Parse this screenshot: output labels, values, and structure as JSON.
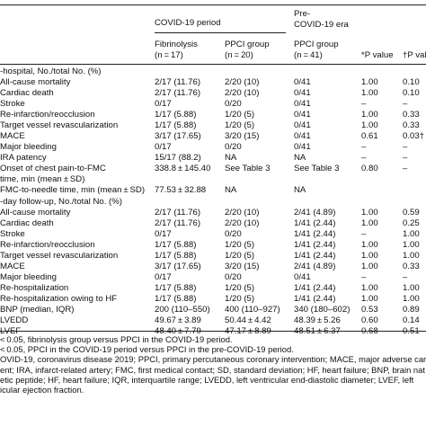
{
  "header": {
    "covid_period": "COVID-19 period",
    "pre_covid_line1": "Pre-",
    "pre_covid_line2": "COVID-19 era",
    "fibrinolysis_line1": "Fibrinolysis",
    "fibrinolysis_line2": "(n = 17)",
    "ppci_covid_line1": "PPCI group",
    "ppci_covid_line2": "(n = 20)",
    "ppci_pre_line1": "PPCI group",
    "ppci_pre_line2": "(n = 41)",
    "p_value_star": "*P value",
    "p_value_dagger": "†P value"
  },
  "rows": [
    {
      "label": "-hospital, No./total No. (%)",
      "fib": "",
      "ppci": "",
      "pre": "",
      "p1": "",
      "p2": ""
    },
    {
      "label": "All-cause mortality",
      "fib": "2/17 (11.76)",
      "ppci": "2/20 (10)",
      "pre": "0/41",
      "p1": "1.00",
      "p2": "0.10"
    },
    {
      "label": "Cardiac death",
      "fib": "2/17 (11.76)",
      "ppci": "2/20 (10)",
      "pre": "0/41",
      "p1": "1.00",
      "p2": "0.10"
    },
    {
      "label": "Stroke",
      "fib": "0/17",
      "ppci": "0/20",
      "pre": "0/41",
      "p1": "–",
      "p2": "–"
    },
    {
      "label": "Re-infarction/reocclusion",
      "fib": "1/17 (5.88)",
      "ppci": "1/20 (5)",
      "pre": "0/41",
      "p1": "1.00",
      "p2": "0.33"
    },
    {
      "label": "Target vessel revascularization",
      "fib": "1/17 (5.88)",
      "ppci": "1/20 (5)",
      "pre": "0/41",
      "p1": "1.00",
      "p2": "0.33"
    },
    {
      "label": "MACE",
      "fib": "3/17 (17.65)",
      "ppci": "3/20 (15)",
      "pre": "0/41",
      "p1": "0.61",
      "p2": "0.03†"
    },
    {
      "label": "Major bleeding",
      "fib": "0/17",
      "ppci": "0/20",
      "pre": "0/41",
      "p1": "–",
      "p2": "–"
    },
    {
      "label": "IRA patency",
      "fib": "15/17 (88.2)",
      "ppci": "NA",
      "pre": "NA",
      "p1": "–",
      "p2": "–"
    },
    {
      "label": "Onset of chest pain-to-FMC",
      "fib": "338.8 ± 145.40",
      "ppci": "See Table 3",
      "pre": "See Table 3",
      "p1": "0.80",
      "p2": "–"
    },
    {
      "label": "time, min (mean ± SD)",
      "fib": "",
      "ppci": "",
      "pre": "",
      "p1": "",
      "p2": ""
    },
    {
      "label": "FMC-to-needle time, min (mean ± SD)",
      "fib": "77.53 ± 32.88",
      "ppci": "NA",
      "pre": "NA",
      "p1": "",
      "p2": ""
    },
    {
      "label": "-day follow-up, No./total No. (%)",
      "fib": "",
      "ppci": "",
      "pre": "",
      "p1": "",
      "p2": ""
    },
    {
      "label": "All-cause mortality",
      "fib": "2/17 (11.76)",
      "ppci": "2/20 (10)",
      "pre": "2/41 (4.89)",
      "p1": "1.00",
      "p2": "0.59"
    },
    {
      "label": "Cardiac death",
      "fib": "2/17 (11.76)",
      "ppci": "2/20 (10)",
      "pre": "1/41 (2.44)",
      "p1": "1.00",
      "p2": "0.25"
    },
    {
      "label": "Stroke",
      "fib": "0/17",
      "ppci": "0/20",
      "pre": "1/41 (2.44)",
      "p1": "–",
      "p2": "1.00"
    },
    {
      "label": "Re-infarction/reocclusion",
      "fib": "1/17 (5.88)",
      "ppci": "1/20 (5)",
      "pre": "1/41 (2.44)",
      "p1": "1.00",
      "p2": "1.00"
    },
    {
      "label": "Target vessel revascularization",
      "fib": "1/17 (5.88)",
      "ppci": "1/20 (5)",
      "pre": "1/41 (2.44)",
      "p1": "1.00",
      "p2": "1.00"
    },
    {
      "label": "MACE",
      "fib": "3/17 (17.65)",
      "ppci": "3/20 (15)",
      "pre": "2/41 (4.89)",
      "p1": "1.00",
      "p2": "0.33"
    },
    {
      "label": "Major bleeding",
      "fib": "0/17",
      "ppci": "0/20",
      "pre": "0/41",
      "p1": "–",
      "p2": "–"
    },
    {
      "label": "Re-hospitalization",
      "fib": "1/17 (5.88)",
      "ppci": "1/20 (5)",
      "pre": "1/41 (2.44)",
      "p1": "1.00",
      "p2": "1.00"
    },
    {
      "label": "Re-hospitalization owing to HF",
      "fib": "1/17 (5.88)",
      "ppci": "1/20 (5)",
      "pre": "1/41 (2.44)",
      "p1": "1.00",
      "p2": "1.00"
    },
    {
      "label": "BNP (median, IQR)",
      "fib": "200 (110–550)",
      "ppci": "400 (110–927)",
      "pre": "340 (180–602)",
      "p1": "0.53",
      "p2": "0.89"
    },
    {
      "label": "LVEDD",
      "fib": "49.67 ± 3.89",
      "ppci": "50.44 ± 4.42",
      "pre": "48.39 ± 5.26",
      "p1": "0.60",
      "p2": "0.14"
    },
    {
      "label": "LVEF",
      "fib": "48.40 ± 7.79",
      "ppci": "47.17 ± 8.89",
      "pre": "48.51 ± 6.37",
      "p1": "0.68",
      "p2": "0.51"
    }
  ],
  "footnotes": [
    "< 0.05, fibrinolysis group versus PPCI in the COVID-19 period.",
    "< 0.05, PPCI in the COVID-19 period versus PPCI in the pre-COVID-19 period.",
    "OVID-19, coronavirus disease 2019; PPCI, primary percutaneous coronary intervention; MACE, major adverse cardi",
    "ent; IRA, infarct-related artery; FMC, first medical contact; SD, standard deviation; HF, heart failure; BNP, brain nat",
    "etic peptide; HF, heart failure; IQR, interquartile range; LVEDD, left ventricular end-diastolic diameter; LVEF, left",
    "icular ejection fraction."
  ]
}
